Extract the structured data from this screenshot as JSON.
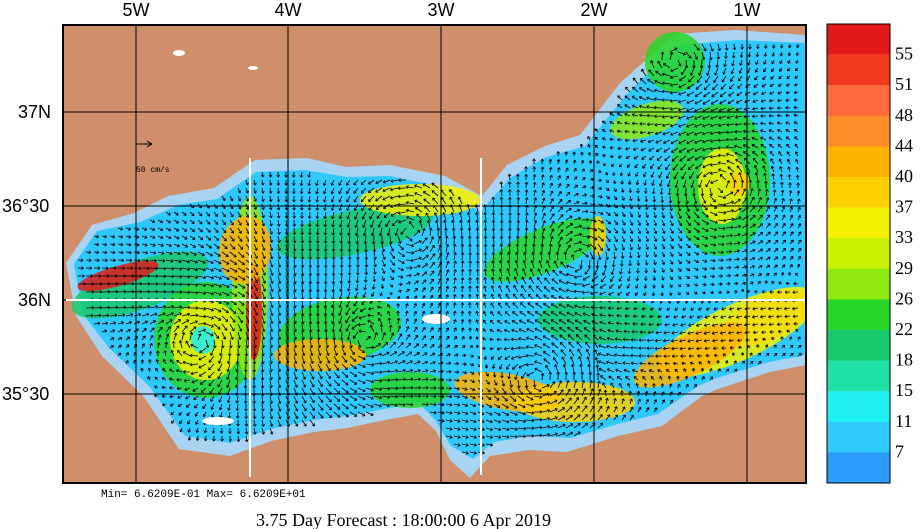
{
  "map": {
    "longitude_labels": [
      "5W",
      "4W",
      "3W",
      "2W",
      "1W"
    ],
    "latitude_labels": [
      "37N",
      "36°30",
      "36N",
      "35°30"
    ],
    "scale_vector_label": "50 cm/s",
    "stats_line": "Min= 6.6209E-01  Max= 6.6209E+01",
    "forecast_line": "3.75 Day Forecast : 18:00:00    6 Apr 2019",
    "colors": {
      "land": "#CF8F6A",
      "frame": "#000000",
      "grid": "#000000",
      "shelf": "#A9D3F2",
      "white_line": "#FFFFFF",
      "vector": "#000000"
    }
  },
  "colorbar": {
    "labels": [
      "55",
      "51",
      "48",
      "44",
      "40",
      "37",
      "33",
      "29",
      "26",
      "22",
      "18",
      "15",
      "11",
      "7"
    ],
    "colors": [
      "#E31A1C",
      "#F03B20",
      "#FF6A3D",
      "#FF8C2A",
      "#FFB100",
      "#FFD000",
      "#F4F000",
      "#C8F000",
      "#8FE80F",
      "#28D628",
      "#18C96B",
      "#1FE0A6",
      "#1FF0F0",
      "#2FC8FF",
      "#2A9BFF"
    ]
  }
}
